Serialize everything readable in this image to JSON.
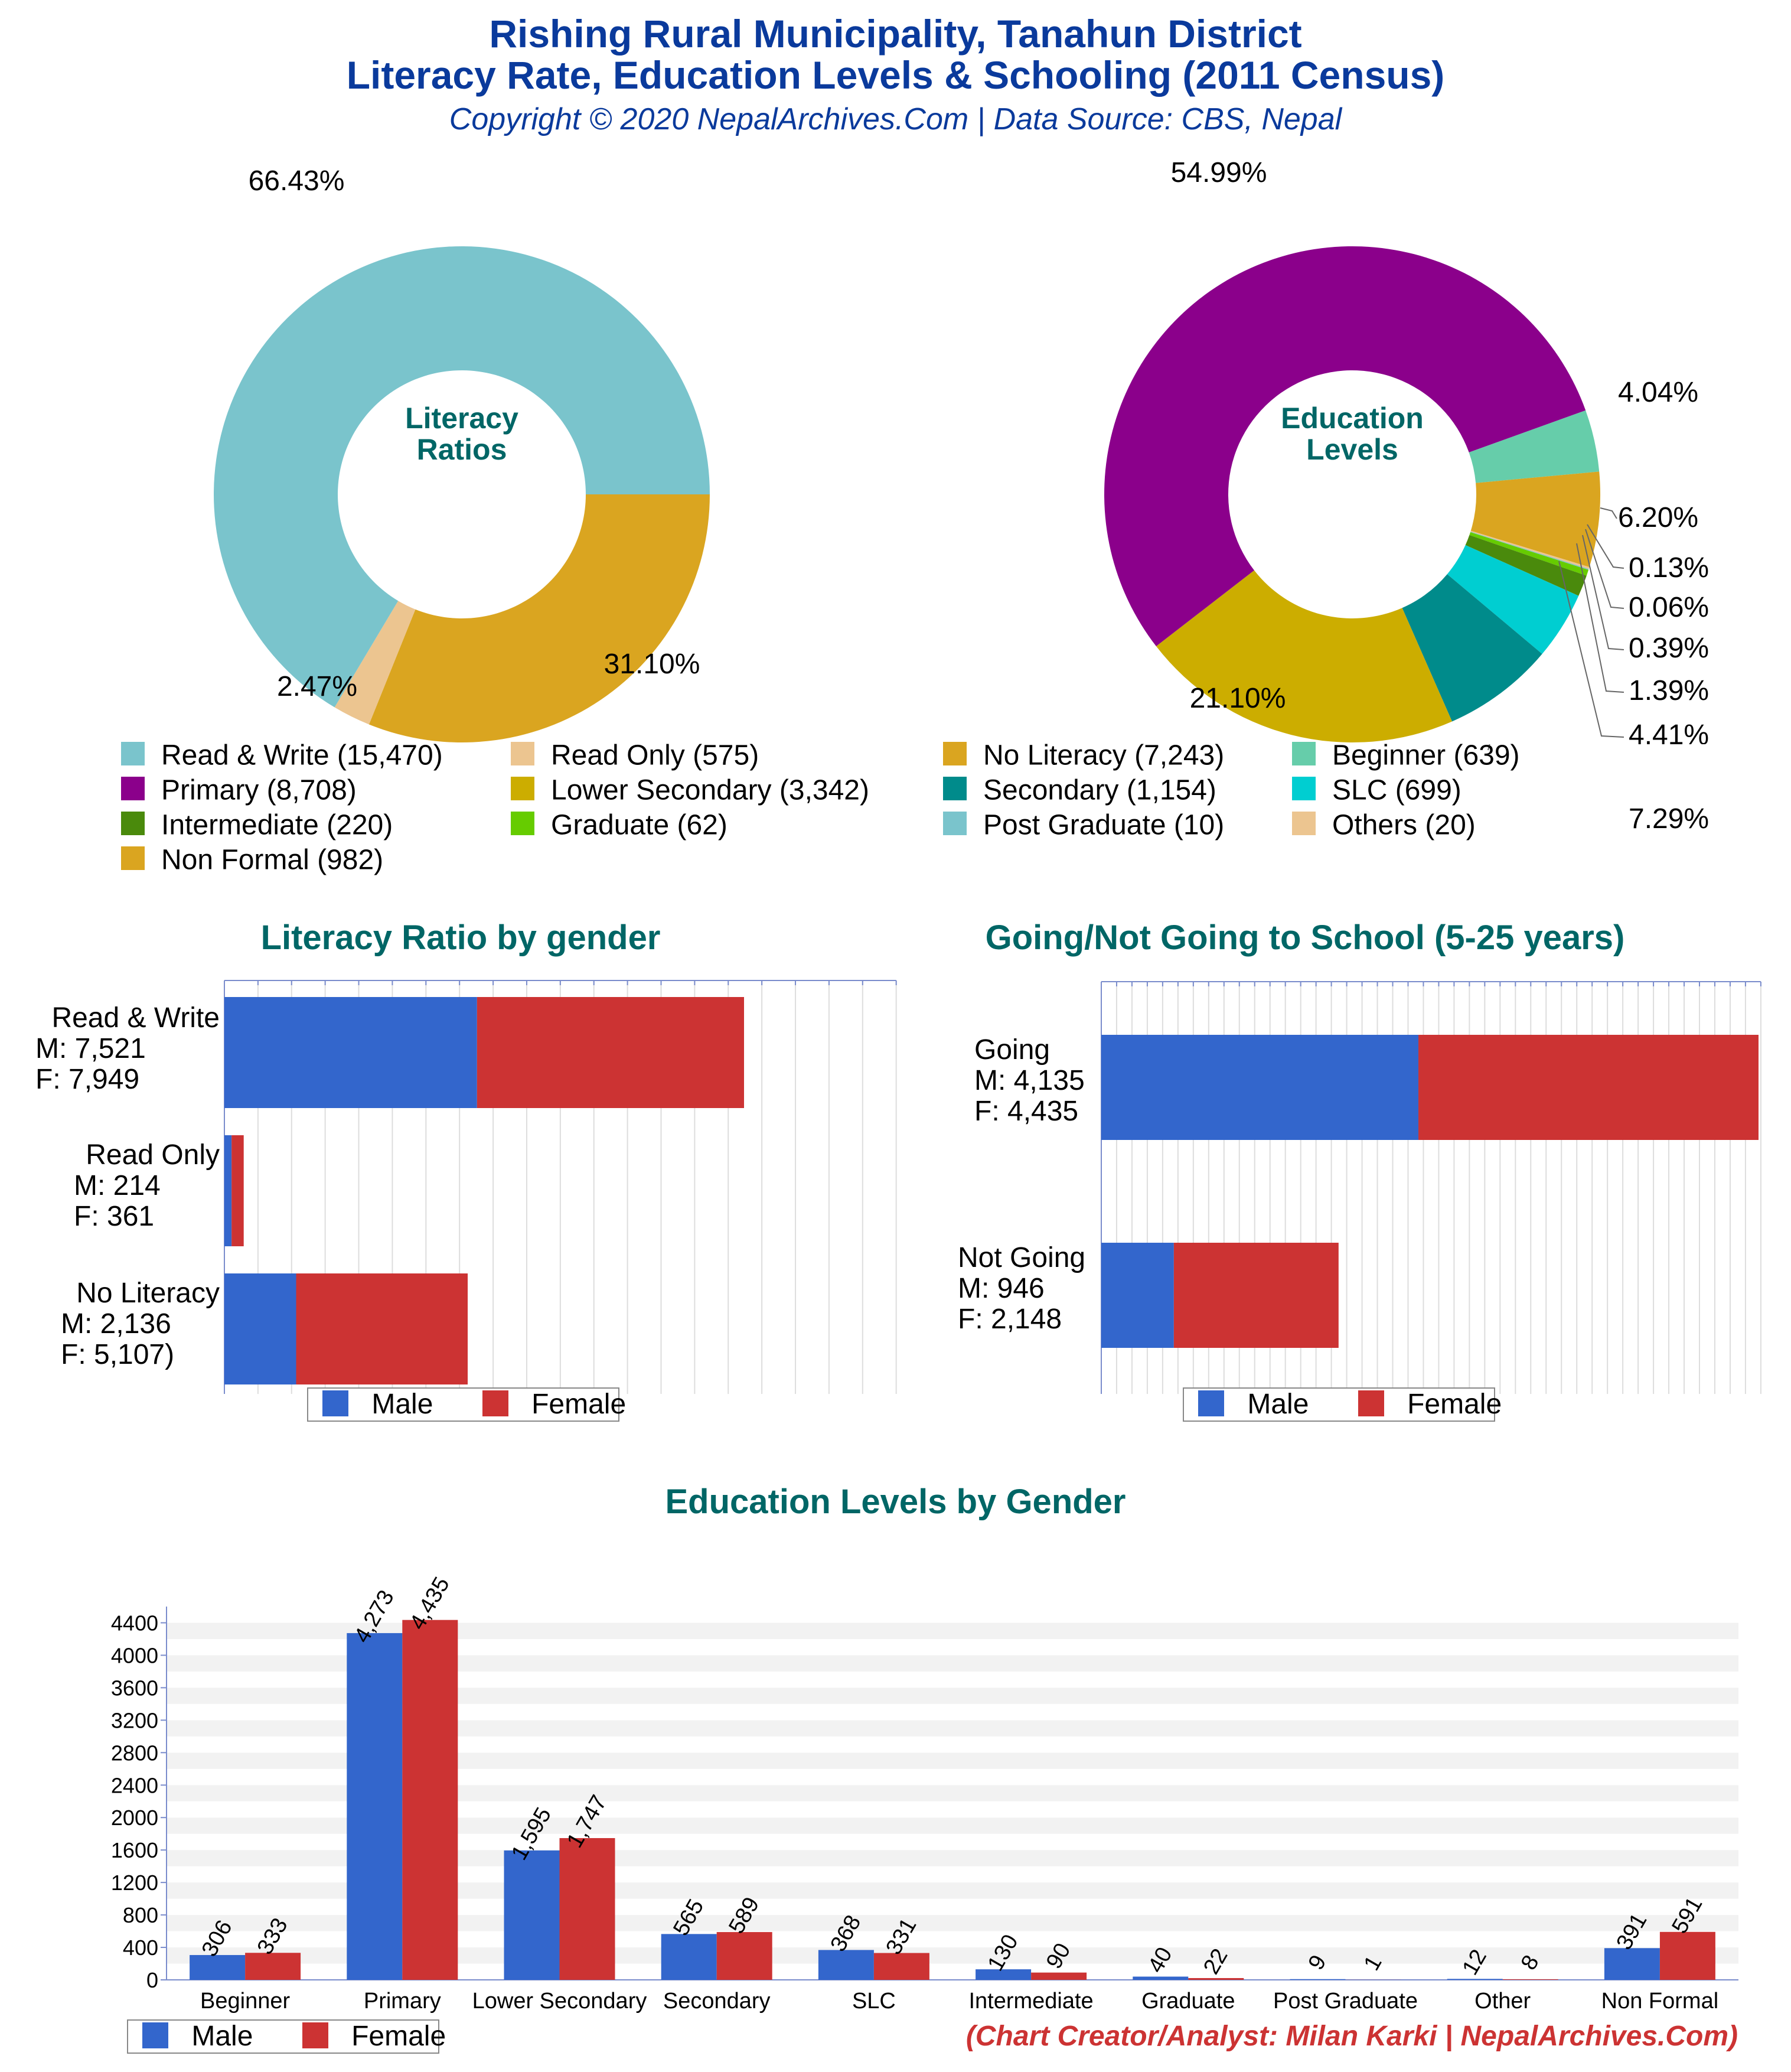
{
  "header": {
    "title_line1": "Rishing Rural Municipality, Tanahun District",
    "title_line2": "Literacy Rate, Education Levels & Schooling (2011 Census)",
    "subtitle": "Copyright © 2020 NepalArchives.Com | Data Source: CBS, Nepal"
  },
  "donut_literacy": {
    "center_line1": "Literacy",
    "center_line2": "Ratios",
    "slices": [
      {
        "label": "Read & Write",
        "value": 15470,
        "percent": "66.43%",
        "color": "#7ac4cc"
      },
      {
        "label": "No Literacy",
        "value": 7243,
        "percent": "31.10%",
        "color": "#daa520"
      },
      {
        "label": "Read Only",
        "value": 575,
        "percent": "2.47%",
        "color": "#ecc590"
      }
    ]
  },
  "donut_education": {
    "center_line1": "Education",
    "center_line2": "Levels",
    "slices": [
      {
        "label": "Primary",
        "value": 8708,
        "percent": "54.99%",
        "color": "#8b008b"
      },
      {
        "label": "Beginner",
        "value": 639,
        "percent": "4.04%",
        "color": "#66cdaa"
      },
      {
        "label": "Non Formal",
        "value": 982,
        "percent": "6.20%",
        "color": "#daa520"
      },
      {
        "label": "Others",
        "value": 20,
        "percent": "0.13%",
        "color": "#ecc590"
      },
      {
        "label": "Post Graduate",
        "value": 10,
        "percent": "0.06%",
        "color": "#7ac4cc"
      },
      {
        "label": "Graduate",
        "value": 62,
        "percent": "0.39%",
        "color": "#66cc00"
      },
      {
        "label": "Intermediate",
        "value": 220,
        "percent": "1.39%",
        "color": "#4a8a0c"
      },
      {
        "label": "SLC",
        "value": 699,
        "percent": "4.41%",
        "color": "#00ced1"
      },
      {
        "label": "Secondary",
        "value": 1154,
        "percent": "7.29%",
        "color": "#008b8b"
      },
      {
        "label": "Lower Secondary",
        "value": 3342,
        "percent": "21.10%",
        "color": "#ccad00"
      }
    ]
  },
  "main_legend": [
    {
      "text": "Read & Write (15,470)",
      "color": "#7ac4cc"
    },
    {
      "text": "Read Only (575)",
      "color": "#ecc590"
    },
    {
      "text": "No Literacy (7,243)",
      "color": "#daa520"
    },
    {
      "text": "Beginner (639)",
      "color": "#66cdaa"
    },
    {
      "text": "Primary (8,708)",
      "color": "#8b008b"
    },
    {
      "text": "Lower Secondary (3,342)",
      "color": "#ccad00"
    },
    {
      "text": "Secondary (1,154)",
      "color": "#008b8b"
    },
    {
      "text": "SLC (699)",
      "color": "#00ced1"
    },
    {
      "text": "Intermediate (220)",
      "color": "#4a8a0c"
    },
    {
      "text": "Graduate (62)",
      "color": "#66cc00"
    },
    {
      "text": "Post Graduate (10)",
      "color": "#7ac4cc"
    },
    {
      "text": "Others (20)",
      "color": "#ecc590"
    },
    {
      "text": "Non Formal (982)",
      "color": "#daa520"
    }
  ],
  "literacy_gender": {
    "title": "Literacy Ratio by gender",
    "rows": [
      {
        "name": "Read & Write",
        "m_label": "M: 7,521",
        "f_label": "F: 7,949",
        "male": 7521,
        "female": 7949
      },
      {
        "name": "Read Only",
        "m_label": "M: 214",
        "f_label": "F: 361",
        "male": 214,
        "female": 361
      },
      {
        "name": "No Literacy",
        "m_label": "M: 2,136",
        "f_label": "F: 5,107)",
        "male": 2136,
        "female": 5107
      }
    ],
    "legend_male": "Male",
    "legend_female": "Female"
  },
  "school": {
    "title": "Going/Not Going to School (5-25 years)",
    "rows": [
      {
        "name": "Going",
        "m_label": "M: 4,135",
        "f_label": "F: 4,435",
        "male": 4135,
        "female": 4435
      },
      {
        "name": "Not Going",
        "m_label": "M: 946",
        "f_label": "F: 2,148",
        "male": 946,
        "female": 2148
      }
    ],
    "legend_male": "Male",
    "legend_female": "Female"
  },
  "colors": {
    "male": "#3366cc",
    "female": "#cc3333"
  },
  "chart_data": {
    "type": "bar",
    "title": "Education Levels by Gender",
    "categories": [
      "Beginner",
      "Primary",
      "Lower Secondary",
      "Secondary",
      "SLC",
      "Intermediate",
      "Graduate",
      "Post Graduate",
      "Other",
      "Non Formal"
    ],
    "series": [
      {
        "name": "Male",
        "values": [
          306,
          4273,
          1595,
          565,
          368,
          130,
          40,
          9,
          12,
          391
        ],
        "labels": [
          "306",
          "4,273",
          "1,595",
          "565",
          "368",
          "130",
          "40",
          "9",
          "12",
          "391"
        ]
      },
      {
        "name": "Female",
        "values": [
          333,
          4435,
          1747,
          589,
          331,
          90,
          22,
          1,
          8,
          591
        ],
        "labels": [
          "333",
          "4,435",
          "1,747",
          "589",
          "331",
          "90",
          "22",
          "1",
          "8",
          "591"
        ]
      }
    ],
    "yticks": [
      "0",
      "400",
      "800",
      "1200",
      "1600",
      "2000",
      "2400",
      "2800",
      "3200",
      "3600",
      "4000",
      "4400"
    ],
    "ylim": [
      0,
      4600
    ],
    "grid": true,
    "legend": "bottom-left"
  },
  "bottom_legend": {
    "male": "Male",
    "female": "Female"
  },
  "credit": "(Chart Creator/Analyst: Milan Karki | NepalArchives.Com)"
}
